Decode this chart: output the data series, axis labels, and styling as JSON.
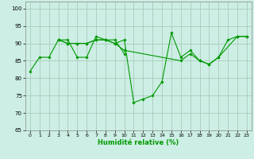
{
  "xlabel": "Humidité relative (%)",
  "background_color": "#cceee4",
  "grid_color": "#aaccbb",
  "line_color": "#009900",
  "xlim": [
    -0.5,
    23.5
  ],
  "ylim": [
    65,
    102
  ],
  "yticks": [
    65,
    70,
    75,
    80,
    85,
    90,
    95,
    100
  ],
  "xticks": [
    0,
    1,
    2,
    3,
    4,
    5,
    6,
    7,
    8,
    9,
    10,
    11,
    12,
    13,
    14,
    15,
    16,
    17,
    18,
    19,
    20,
    21,
    22,
    23
  ],
  "series": [
    {
      "x": [
        0,
        1,
        2,
        3,
        4,
        5,
        6,
        7,
        8,
        9,
        10
      ],
      "y": [
        82,
        86,
        86,
        91,
        91,
        86,
        86,
        92,
        91,
        91,
        87
      ]
    },
    {
      "x": [
        3,
        4,
        5,
        6,
        7,
        8,
        9,
        10,
        11,
        12,
        13,
        14,
        15,
        16,
        17,
        18,
        19,
        20,
        21,
        22,
        23
      ],
      "y": [
        91,
        90,
        90,
        90,
        91,
        91,
        90,
        91,
        73,
        74,
        75,
        79,
        93,
        86,
        88,
        85,
        84,
        86,
        91,
        92,
        92
      ]
    },
    {
      "x": [
        3,
        4,
        5,
        6,
        7,
        8,
        9,
        10,
        16,
        17,
        18,
        19,
        20,
        22,
        23
      ],
      "y": [
        91,
        90,
        90,
        90,
        91,
        91,
        90,
        88,
        85,
        87,
        85,
        84,
        86,
        92,
        92
      ]
    }
  ]
}
